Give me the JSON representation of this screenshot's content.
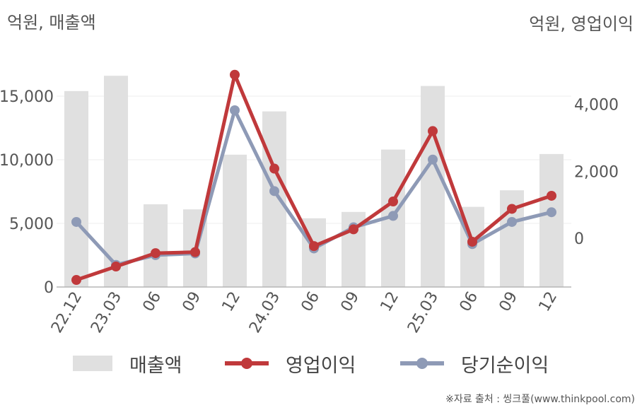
{
  "chart_data": {
    "type": "bar+line",
    "left_axis_unit": "억원, 매출액",
    "right_axis_unit": "억원, 영업이익",
    "categories": [
      "22.12",
      "23.03",
      "06",
      "09",
      "12",
      "24.03",
      "06",
      "09",
      "12",
      "25.03",
      "06",
      "09",
      "12"
    ],
    "left_axis": {
      "ticks": [
        0,
        5000,
        10000,
        15000
      ],
      "tick_labels": [
        "0",
        "5,000",
        "10,000",
        "15,000"
      ],
      "ylim": [
        0,
        17000
      ]
    },
    "right_axis": {
      "ticks": [
        0,
        2000,
        4000
      ],
      "tick_labels": [
        "0",
        "2,000",
        "4,000"
      ],
      "ylim": [
        -1450,
        5000
      ]
    },
    "series": [
      {
        "name": "매출액",
        "kind": "bar",
        "axis": "left",
        "color": "#e0e0e0",
        "values": [
          15400,
          16600,
          6500,
          6100,
          10400,
          13800,
          5400,
          5900,
          10800,
          15800,
          6300,
          7600,
          10450
        ]
      },
      {
        "name": "영업이익",
        "kind": "line",
        "axis": "right",
        "color": "#c0393b",
        "values": [
          -1240,
          -840,
          -440,
          -410,
          4880,
          2080,
          -230,
          270,
          1100,
          3200,
          -100,
          880,
          1270
        ]
      },
      {
        "name": "당기순이익",
        "kind": "line",
        "axis": "right",
        "color": "#8e9ab6",
        "values": [
          490,
          -790,
          -500,
          -450,
          3820,
          1410,
          -300,
          330,
          670,
          2350,
          -170,
          490,
          780
        ]
      }
    ],
    "grid": true,
    "legend_position": "bottom"
  },
  "source_note": "※자료 출처 : 씽크풀(www.thinkpool.com)"
}
